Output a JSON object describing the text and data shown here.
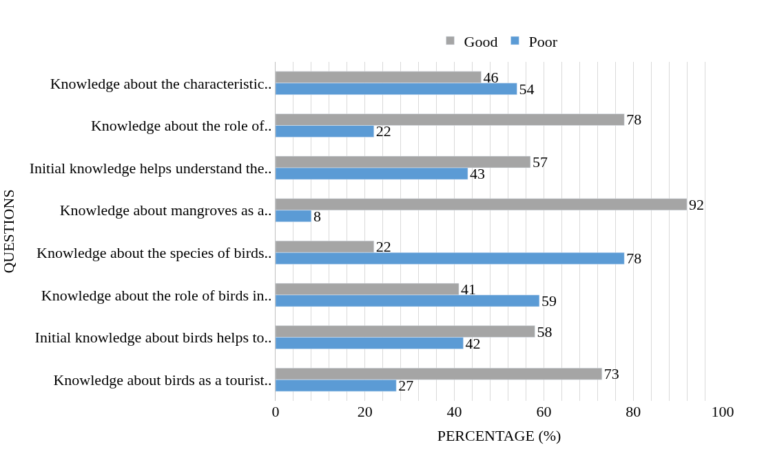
{
  "chart_data": {
    "type": "bar",
    "orientation": "horizontal",
    "xlabel": "PERCENTAGE (%)",
    "ylabel": "QUESTIONS",
    "categories": [
      "Knowledge about the characteristic..",
      "Knowledge about the role of..",
      "Initial knowledge helps understand the..",
      "Knowledge about mangroves as a..",
      "Knowledge about the species of birds..",
      "Knowledge about the role of birds in..",
      "Initial knowledge about birds helps to..",
      "Knowledge about birds as a tourist.."
    ],
    "series": [
      {
        "name": "Good",
        "color": "#a5a5a5",
        "values": [
          46,
          78,
          57,
          92,
          22,
          41,
          58,
          73
        ]
      },
      {
        "name": "Poor",
        "color": "#5b9bd5",
        "values": [
          54,
          22,
          43,
          8,
          78,
          59,
          42,
          27
        ]
      }
    ],
    "xlim": [
      0,
      100
    ],
    "xticks": [
      0,
      {
        "value": 4,
        "label": null
      },
      {
        "value": 8,
        "label": null
      },
      {
        "value": 12,
        "label": null
      },
      {
        "value": 16,
        "label": null
      },
      20,
      {
        "value": 24,
        "label": null
      },
      {
        "value": 28,
        "label": null
      },
      {
        "value": 32,
        "label": null
      },
      {
        "value": 36,
        "label": null
      },
      40,
      {
        "value": 44,
        "label": null
      },
      {
        "value": 48,
        "label": null
      },
      {
        "value": 52,
        "label": null
      },
      {
        "value": 56,
        "label": null
      },
      60,
      {
        "value": 64,
        "label": null
      },
      {
        "value": 68,
        "label": null
      },
      {
        "value": 72,
        "label": null
      },
      {
        "value": 76,
        "label": null
      },
      80,
      {
        "value": 84,
        "label": null
      },
      {
        "value": 88,
        "label": null
      },
      {
        "value": 92,
        "label": null
      },
      {
        "value": 96,
        "label": null
      },
      100
    ],
    "grid": "x",
    "legend": "top",
    "data_labels": true
  }
}
